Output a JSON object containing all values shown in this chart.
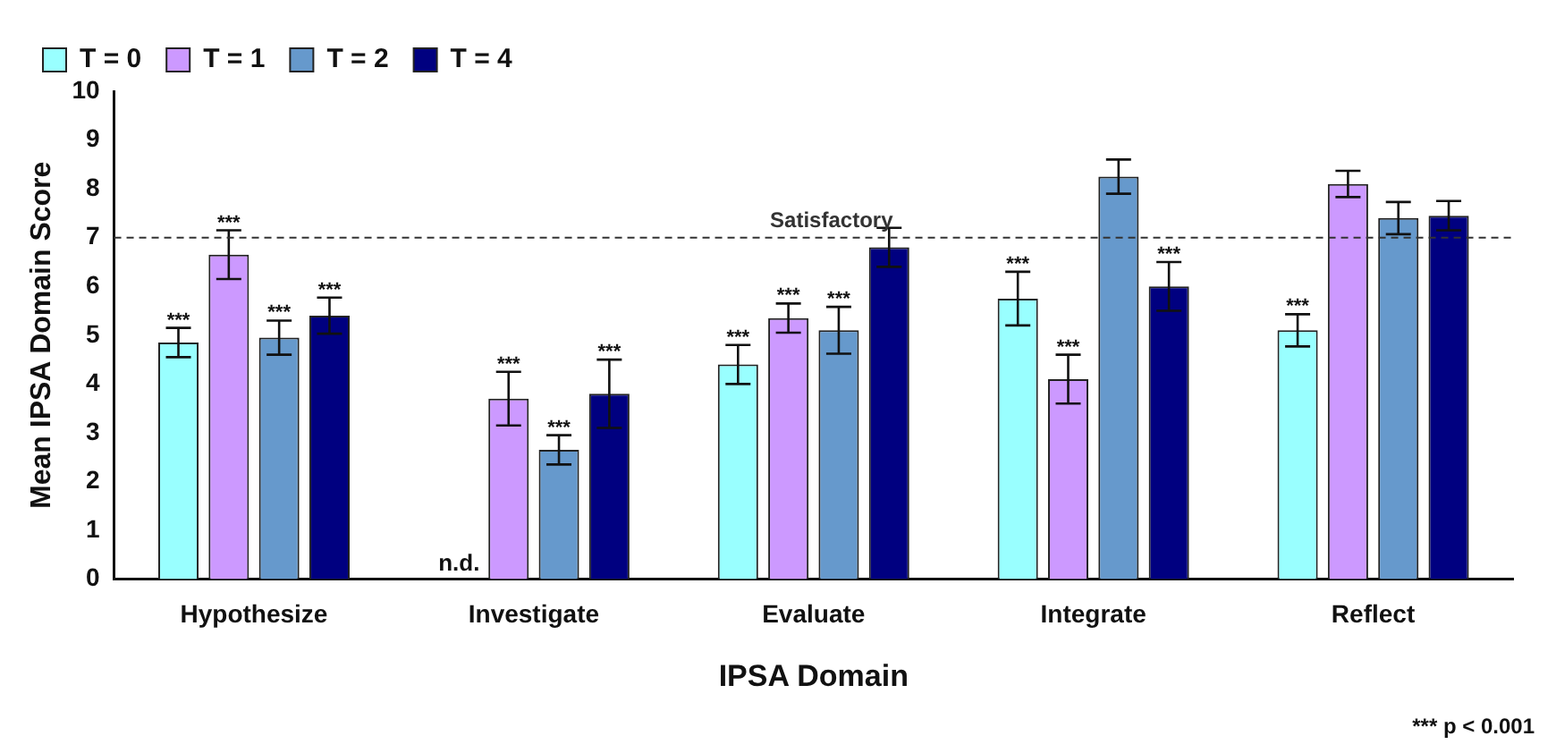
{
  "chart_data": {
    "type": "bar",
    "xlabel": "IPSA Domain",
    "ylabel": "Mean IPSA Domain Score",
    "categories": [
      "Hypothesize",
      "Investigate",
      "Evaluate",
      "Integrate",
      "Reflect"
    ],
    "series": [
      {
        "name": "T = 0",
        "color": "#99ffff",
        "values": [
          4.85,
          null,
          4.4,
          5.75,
          5.1
        ],
        "errors": [
          0.3,
          null,
          0.4,
          0.55,
          0.33
        ],
        "value_labels": [
          "***",
          "n.d.",
          "***",
          "***",
          "***"
        ]
      },
      {
        "name": "T = 1",
        "color": "#cc99ff",
        "values": [
          6.65,
          3.7,
          5.35,
          4.1,
          8.1
        ],
        "errors": [
          0.5,
          0.55,
          0.3,
          0.5,
          0.27
        ],
        "value_labels": [
          "***",
          "***",
          "***",
          "***",
          null
        ]
      },
      {
        "name": "T = 2",
        "color": "#6699cc",
        "values": [
          4.95,
          2.65,
          5.1,
          8.25,
          7.4
        ],
        "errors": [
          0.35,
          0.3,
          0.48,
          0.35,
          0.33
        ],
        "value_labels": [
          "***",
          "***",
          "***",
          null,
          null
        ]
      },
      {
        "name": "T = 4",
        "color": "#000080",
        "values": [
          5.4,
          3.8,
          6.8,
          6.0,
          7.45
        ],
        "errors": [
          0.37,
          0.7,
          0.4,
          0.5,
          0.3
        ],
        "value_labels": [
          "***",
          "***",
          null,
          "***",
          null
        ]
      }
    ],
    "ylim": [
      0,
      10
    ],
    "yticks": [
      0,
      1,
      2,
      3,
      4,
      5,
      6,
      7,
      8,
      9,
      10
    ],
    "grid": false,
    "legend": "top left",
    "ref_lines": [
      {
        "axis": "y",
        "value": 7,
        "label": "Satisfactory",
        "color": "#333333",
        "line_style": "dashed"
      }
    ],
    "annotations": [
      "*** p < 0.001"
    ]
  }
}
